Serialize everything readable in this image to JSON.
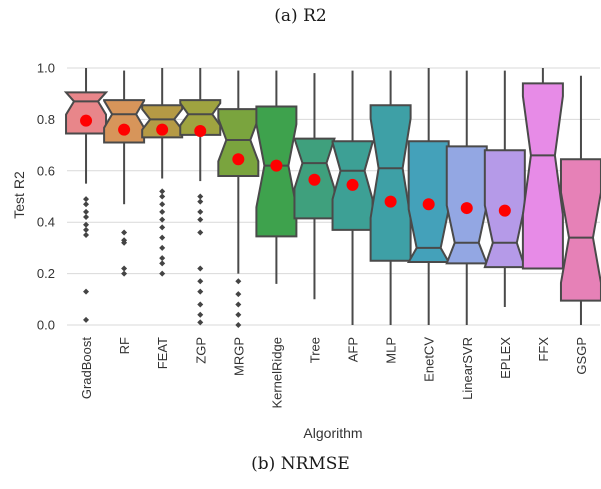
{
  "captions": {
    "top": "(a) R2",
    "bottom": "(b) NRMSE"
  },
  "chart_data": {
    "type": "boxplot",
    "xlabel": "Algorithm",
    "ylabel": "Test R2",
    "ylim": [
      0.0,
      1.0
    ],
    "yticks": [
      "0.0",
      "0.2",
      "0.4",
      "0.6",
      "0.8",
      "1.0"
    ],
    "grid": "horizontal",
    "notched": true,
    "mean_marker_color": "#ff0000",
    "series": [
      {
        "name": "GradBoost",
        "color": "#e8868a",
        "whislo": 0.55,
        "q1": 0.745,
        "med": 0.87,
        "q3": 0.905,
        "whishi": 1.0,
        "mean": 0.795,
        "outliers": [
          0.49,
          0.47,
          0.44,
          0.42,
          0.39,
          0.37,
          0.35,
          0.13,
          0.02
        ]
      },
      {
        "name": "RF",
        "color": "#d7955a",
        "whislo": 0.47,
        "q1": 0.71,
        "med": 0.82,
        "q3": 0.875,
        "whishi": 0.99,
        "mean": 0.76,
        "outliers": [
          0.36,
          0.33,
          0.32,
          0.22,
          0.2
        ]
      },
      {
        "name": "FEAT",
        "color": "#b59a45",
        "whislo": 0.57,
        "q1": 0.73,
        "med": 0.8,
        "q3": 0.855,
        "whishi": 1.0,
        "mean": 0.76,
        "outliers": [
          0.52,
          0.5,
          0.47,
          0.44,
          0.41,
          0.38,
          0.34,
          0.3,
          0.26,
          0.24,
          0.2
        ]
      },
      {
        "name": "ZGP",
        "color": "#9fa340",
        "whislo": 0.56,
        "q1": 0.74,
        "med": 0.82,
        "q3": 0.875,
        "whishi": 1.0,
        "mean": 0.755,
        "outliers": [
          0.5,
          0.48,
          0.44,
          0.41,
          0.36,
          0.22,
          0.17,
          0.13,
          0.08,
          0.04,
          0.01
        ]
      },
      {
        "name": "MRGP",
        "color": "#7aa43e",
        "whislo": 0.2,
        "q1": 0.58,
        "med": 0.72,
        "q3": 0.84,
        "whishi": 0.99,
        "mean": 0.645,
        "outliers": [
          0.17,
          0.12,
          0.08,
          0.04,
          0.0
        ]
      },
      {
        "name": "KernelRidge",
        "color": "#3ea24d",
        "whislo": 0.16,
        "q1": 0.345,
        "med": 0.62,
        "q3": 0.85,
        "whishi": 0.99,
        "mean": 0.62,
        "outliers": []
      },
      {
        "name": "Tree",
        "color": "#3fa07d",
        "whislo": 0.1,
        "q1": 0.415,
        "med": 0.63,
        "q3": 0.725,
        "whishi": 0.98,
        "mean": 0.565,
        "outliers": []
      },
      {
        "name": "AFP",
        "color": "#3da095",
        "whislo": 0.0,
        "q1": 0.37,
        "med": 0.6,
        "q3": 0.715,
        "whishi": 0.99,
        "mean": 0.545,
        "outliers": []
      },
      {
        "name": "MLP",
        "color": "#3ea0a6",
        "whislo": 0.0,
        "q1": 0.25,
        "med": 0.61,
        "q3": 0.855,
        "whishi": 0.99,
        "mean": 0.48,
        "outliers": []
      },
      {
        "name": "EnetCV",
        "color": "#44a1ba",
        "whislo": 0.0,
        "q1": 0.245,
        "med": 0.3,
        "q3": 0.715,
        "whishi": 1.0,
        "mean": 0.47,
        "outliers": []
      },
      {
        "name": "LinearSVR",
        "color": "#93a7e3",
        "whislo": 0.0,
        "q1": 0.24,
        "med": 0.32,
        "q3": 0.695,
        "whishi": 0.99,
        "mean": 0.455,
        "outliers": []
      },
      {
        "name": "EPLEX",
        "color": "#b59ae8",
        "whislo": 0.07,
        "q1": 0.225,
        "med": 0.32,
        "q3": 0.68,
        "whishi": 0.99,
        "mean": 0.445,
        "outliers": []
      },
      {
        "name": "FFX",
        "color": "#e78be7",
        "whislo": 0.22,
        "q1": 0.22,
        "med": 0.66,
        "q3": 0.94,
        "whishi": 1.0,
        "mean": null,
        "outliers": []
      },
      {
        "name": "GSGP",
        "color": "#e681b7",
        "whislo": 0.0,
        "q1": 0.095,
        "med": 0.34,
        "q3": 0.645,
        "whishi": 0.97,
        "mean": null,
        "outliers": []
      }
    ]
  }
}
